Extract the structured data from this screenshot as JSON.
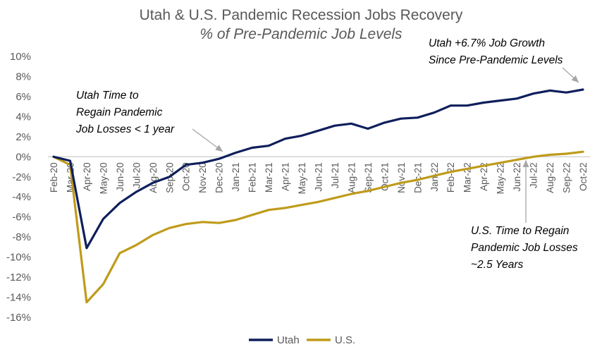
{
  "chart_data": {
    "type": "line",
    "title": "Utah & U.S. Pandemic Recession Jobs Recovery",
    "subtitle": "% of Pre-Pandemic Job Levels",
    "xlabel": "",
    "ylabel": "",
    "ylim": [
      -16,
      10
    ],
    "yticks": [
      "10%",
      "8%",
      "6%",
      "4%",
      "2%",
      "0%",
      "-2%",
      "-4%",
      "-6%",
      "-8%",
      "-10%",
      "-12%",
      "-14%",
      "-16%"
    ],
    "ytick_values": [
      10,
      8,
      6,
      4,
      2,
      0,
      -2,
      -4,
      -6,
      -8,
      -10,
      -12,
      -14,
      -16
    ],
    "grid": false,
    "legend_position": "bottom",
    "categories": [
      "Feb-20",
      "Mar-20",
      "Apr-20",
      "May-20",
      "Jun-20",
      "Jul-20",
      "Aug-20",
      "Sep-20",
      "Oct-20",
      "Nov-20",
      "Dec-20",
      "Jan-21",
      "Feb-21",
      "Mar-21",
      "Apr-21",
      "May-21",
      "Jun-21",
      "Jul-21",
      "Aug-21",
      "Sep-21",
      "Oct-21",
      "Nov-21",
      "Dec-21",
      "Jan-22",
      "Feb-22",
      "Mar-22",
      "Apr-22",
      "May-22",
      "Jun-22",
      "Jul-22",
      "Aug-22",
      "Sep-22",
      "Oct-22"
    ],
    "x_labels_shown": [
      "Feb-20",
      "Mar-20",
      "Apr-20",
      "May-20",
      "Jun-20",
      "Jul-20",
      "Aug-20",
      "Sep-20",
      "Oct-20",
      "Nov-20",
      "Dec-20",
      "Jan-21",
      "Feb-21",
      "Mar-21",
      "Apr-21",
      "May-21",
      "Jun-21",
      "Jul-21",
      "Aug-21",
      "Sep-21",
      "Oct-21",
      "Nov-21",
      "Dec-21",
      "Jan-22",
      "Feb-22",
      "Mar-22",
      "Apr-22",
      "May-22",
      "Jun-22",
      "Jul-22",
      "Aug-22",
      "Sep-22",
      "Oct-22"
    ],
    "series": [
      {
        "name": "Utah",
        "color": "#0f1f5c",
        "values": [
          0,
          -0.4,
          -9.1,
          -6.2,
          -4.6,
          -3.5,
          -2.6,
          -2.0,
          -0.8,
          -0.6,
          -0.2,
          0.4,
          0.9,
          1.1,
          1.8,
          2.1,
          2.6,
          3.1,
          3.3,
          2.8,
          3.4,
          3.8,
          3.9,
          4.4,
          5.1,
          5.1,
          5.4,
          5.6,
          5.8,
          6.3,
          6.6,
          6.4,
          6.7
        ]
      },
      {
        "name": "U.S.",
        "color": "#bf9b1a",
        "values": [
          0,
          -0.8,
          -14.5,
          -12.7,
          -9.6,
          -8.8,
          -7.8,
          -7.1,
          -6.7,
          -6.5,
          -6.6,
          -6.3,
          -5.8,
          -5.3,
          -5.1,
          -4.8,
          -4.5,
          -4.1,
          -3.7,
          -3.4,
          -3.0,
          -2.6,
          -2.3,
          -1.9,
          -1.5,
          -1.2,
          -0.9,
          -0.6,
          -0.3,
          0.0,
          0.2,
          0.3,
          0.5
        ]
      }
    ],
    "annotations": [
      {
        "id": "utah-growth",
        "lines": [
          "Utah +6.7% Job Growth",
          "Since Pre-Pandemic Levels"
        ]
      },
      {
        "id": "utah-time",
        "lines": [
          "Utah Time to",
          "Regain Pandemic",
          "Job Losses  < 1 year"
        ]
      },
      {
        "id": "us-time",
        "lines": [
          "U.S. Time to Regain",
          "Pandemic Job Losses",
          "~2.5 Years"
        ]
      }
    ]
  }
}
